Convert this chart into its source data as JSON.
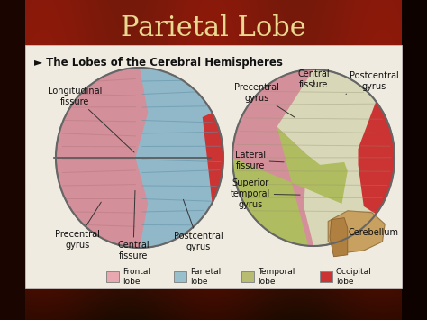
{
  "title": "Parietal Lobe",
  "title_color": "#e8d890",
  "title_fontsize": 22,
  "bg_color_top": "#7a1010",
  "bg_color_mid": "#8b1a0a",
  "bg_color_bot": "#2a0800",
  "content_bg": "#f2ede0",
  "subtitle": "► The Lobes of the Cerebral Hemispheres",
  "subtitle_fontsize": 8.5,
  "subtitle_color": "#111111",
  "legend_items": [
    {
      "label": "Frontal\nlobe",
      "color": "#e8a8b0"
    },
    {
      "label": "Parietal\nlobe",
      "color": "#98c0cc"
    },
    {
      "label": "Temporal\nlobe",
      "color": "#b8bc70"
    },
    {
      "label": "Occipital\nlobe",
      "color": "#cc3333"
    }
  ],
  "figsize": [
    4.74,
    3.55
  ],
  "dpi": 100
}
